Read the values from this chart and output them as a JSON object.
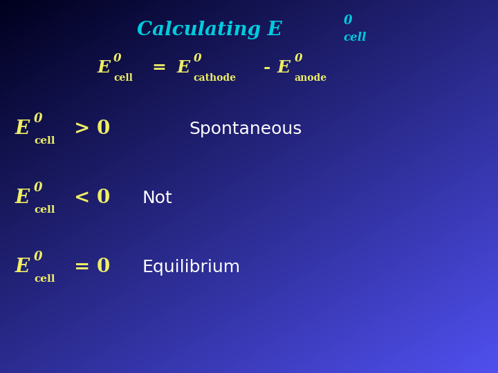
{
  "title_color": "#00CCDD",
  "yellow_color": "#EEEE66",
  "white_color": "#FFFFFF",
  "figsize": [
    7.2,
    5.4
  ],
  "dpi": 100,
  "bg_colors": [
    "#000010",
    "#0000AA",
    "#2222CC",
    "#3333DD"
  ],
  "title_main": "Calculating E",
  "title_sup": "0",
  "title_sub": "cell",
  "eq_label": "E",
  "eq_sup": "0",
  "eq_sub_cell": "cell",
  "eq_sub_cathode": "cathode",
  "eq_sub_anode": "anode",
  "rows": [
    {
      "sym": "> 0",
      "desc": "Spontaneous"
    },
    {
      "sym": "< 0",
      "desc": "Not"
    },
    {
      "sym": "= 0",
      "desc": "Equilibrium"
    }
  ]
}
